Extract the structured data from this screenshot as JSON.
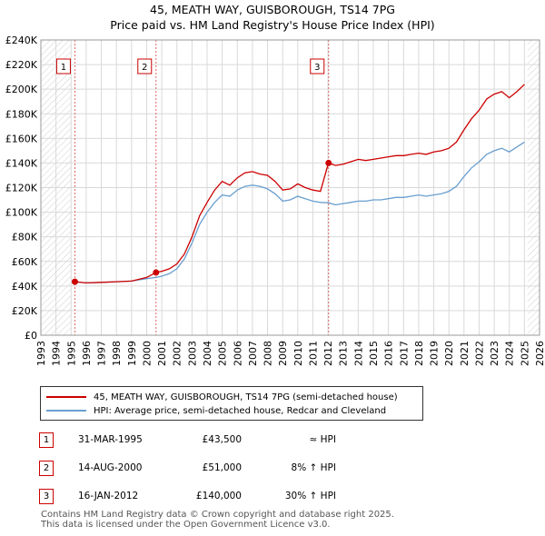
{
  "title_line1": "45, MEATH WAY, GUISBOROUGH, TS14 7PG",
  "title_line2": "Price paid vs. HM Land Registry's House Price Index (HPI)",
  "chart_data": {
    "type": "line",
    "title": "Price paid vs. HM Land Registry's House Price Index (HPI)",
    "xlim": [
      1993,
      2026
    ],
    "ylim": [
      0,
      240000
    ],
    "y_ticks": [
      0,
      20000,
      40000,
      60000,
      80000,
      100000,
      120000,
      140000,
      160000,
      180000,
      200000,
      220000,
      240000
    ],
    "y_tick_labels": [
      "£0",
      "£20K",
      "£40K",
      "£60K",
      "£80K",
      "£100K",
      "£120K",
      "£140K",
      "£160K",
      "£180K",
      "£200K",
      "£220K",
      "£240K"
    ],
    "x_ticks": [
      1993,
      1994,
      1995,
      1996,
      1997,
      1998,
      1999,
      2000,
      2001,
      2002,
      2003,
      2004,
      2005,
      2006,
      2007,
      2008,
      2009,
      2010,
      2011,
      2012,
      2013,
      2014,
      2015,
      2016,
      2017,
      2018,
      2019,
      2020,
      2021,
      2022,
      2023,
      2024,
      2025,
      2026
    ],
    "x_tick_labels": [
      "1993",
      "1994",
      "1995",
      "1996",
      "1997",
      "1998",
      "1999",
      "2000",
      "2001",
      "2002",
      "2003",
      "2004",
      "2005",
      "2006",
      "2007",
      "2008",
      "2009",
      "2010",
      "2011",
      "2012",
      "2013",
      "2014",
      "2015",
      "2016",
      "2017",
      "2018",
      "2019",
      "2020",
      "2021",
      "2022",
      "2023",
      "2024",
      "2025",
      "2026"
    ],
    "hatch_before": 1995.0,
    "hatch_after": 2025.2,
    "series": [
      {
        "name": "45, MEATH WAY, GUISBOROUGH, TS14 7PG (semi-detached house)",
        "color": "#cc0000",
        "x": [
          1995.25,
          1996,
          1997,
          1998,
          1999,
          2000,
          2000.62,
          2001,
          2001.5,
          2002,
          2002.5,
          2003,
          2003.5,
          2004,
          2004.5,
          2005,
          2005.5,
          2006,
          2006.5,
          2007,
          2007.5,
          2008,
          2008.5,
          2009,
          2009.5,
          2010,
          2010.5,
          2011,
          2011.5,
          2012.03,
          2012.5,
          2013,
          2013.5,
          2014,
          2014.5,
          2015,
          2015.5,
          2016,
          2016.5,
          2017,
          2017.5,
          2018,
          2018.5,
          2019,
          2019.5,
          2020,
          2020.5,
          2021,
          2021.5,
          2022,
          2022.5,
          2023,
          2023.5,
          2024,
          2024.5,
          2025
        ],
        "values": [
          43500,
          42500,
          43000,
          43500,
          44000,
          47000,
          51000,
          52000,
          54000,
          58000,
          66000,
          80000,
          97000,
          108000,
          118000,
          125000,
          122000,
          128000,
          132000,
          133000,
          131000,
          130000,
          125000,
          118000,
          119000,
          123000,
          120000,
          118000,
          117000,
          140000,
          138000,
          139000,
          141000,
          143000,
          142000,
          143000,
          144000,
          145000,
          146000,
          146000,
          147000,
          148000,
          147000,
          149000,
          150000,
          152000,
          157000,
          167000,
          176000,
          183000,
          192000,
          196000,
          198000,
          193000,
          198000,
          204000
        ]
      },
      {
        "name": "HPI: Average price, semi-detached house, Redcar and Cleveland",
        "color": "#6a9fd0",
        "x": [
          1995.25,
          1996,
          1997,
          1998,
          1999,
          2000,
          2000.62,
          2001,
          2001.5,
          2002,
          2002.5,
          2003,
          2003.5,
          2004,
          2004.5,
          2005,
          2005.5,
          2006,
          2006.5,
          2007,
          2007.5,
          2008,
          2008.5,
          2009,
          2009.5,
          2010,
          2010.5,
          2011,
          2011.5,
          2012.03,
          2012.5,
          2013,
          2013.5,
          2014,
          2014.5,
          2015,
          2015.5,
          2016,
          2016.5,
          2017,
          2017.5,
          2018,
          2018.5,
          2019,
          2019.5,
          2020,
          2020.5,
          2021,
          2021.5,
          2022,
          2022.5,
          2023,
          2023.5,
          2024,
          2024.5,
          2025
        ],
        "values": [
          43500,
          42500,
          43000,
          43500,
          44000,
          46000,
          47000,
          48000,
          50000,
          54000,
          62000,
          75000,
          90000,
          100000,
          108000,
          114000,
          113000,
          118000,
          121000,
          122000,
          121000,
          119000,
          115000,
          109000,
          110000,
          113000,
          111000,
          109000,
          108000,
          107700,
          106000,
          107000,
          108000,
          109000,
          109000,
          110000,
          110000,
          111000,
          112000,
          112000,
          113000,
          114000,
          113000,
          114000,
          115000,
          117000,
          121000,
          129000,
          136000,
          141000,
          147000,
          150000,
          152000,
          149000,
          153000,
          157000
        ]
      }
    ],
    "sale_points": [
      {
        "label": "1",
        "x": 1995.25,
        "y": 43500
      },
      {
        "label": "2",
        "x": 2000.62,
        "y": 51000
      },
      {
        "label": "3",
        "x": 2012.04,
        "y": 140000
      }
    ]
  },
  "legend": {
    "property_label": "45, MEATH WAY, GUISBOROUGH, TS14 7PG (semi-detached house)",
    "hpi_label": "HPI: Average price, semi-detached house, Redcar and Cleveland",
    "property_color": "#cc0000",
    "hpi_color": "#6a9fd0"
  },
  "sales": [
    {
      "num": "1",
      "date": "31-MAR-1995",
      "price": "£43,500",
      "relation": "≈ HPI"
    },
    {
      "num": "2",
      "date": "14-AUG-2000",
      "price": "£51,000",
      "relation": "8% ↑ HPI"
    },
    {
      "num": "3",
      "date": "16-JAN-2012",
      "price": "£140,000",
      "relation": "30% ↑ HPI"
    }
  ],
  "footer": {
    "line1": "Contains HM Land Registry data © Crown copyright and database right 2025.",
    "line2": "This data is licensed under the Open Government Licence v3.0."
  }
}
